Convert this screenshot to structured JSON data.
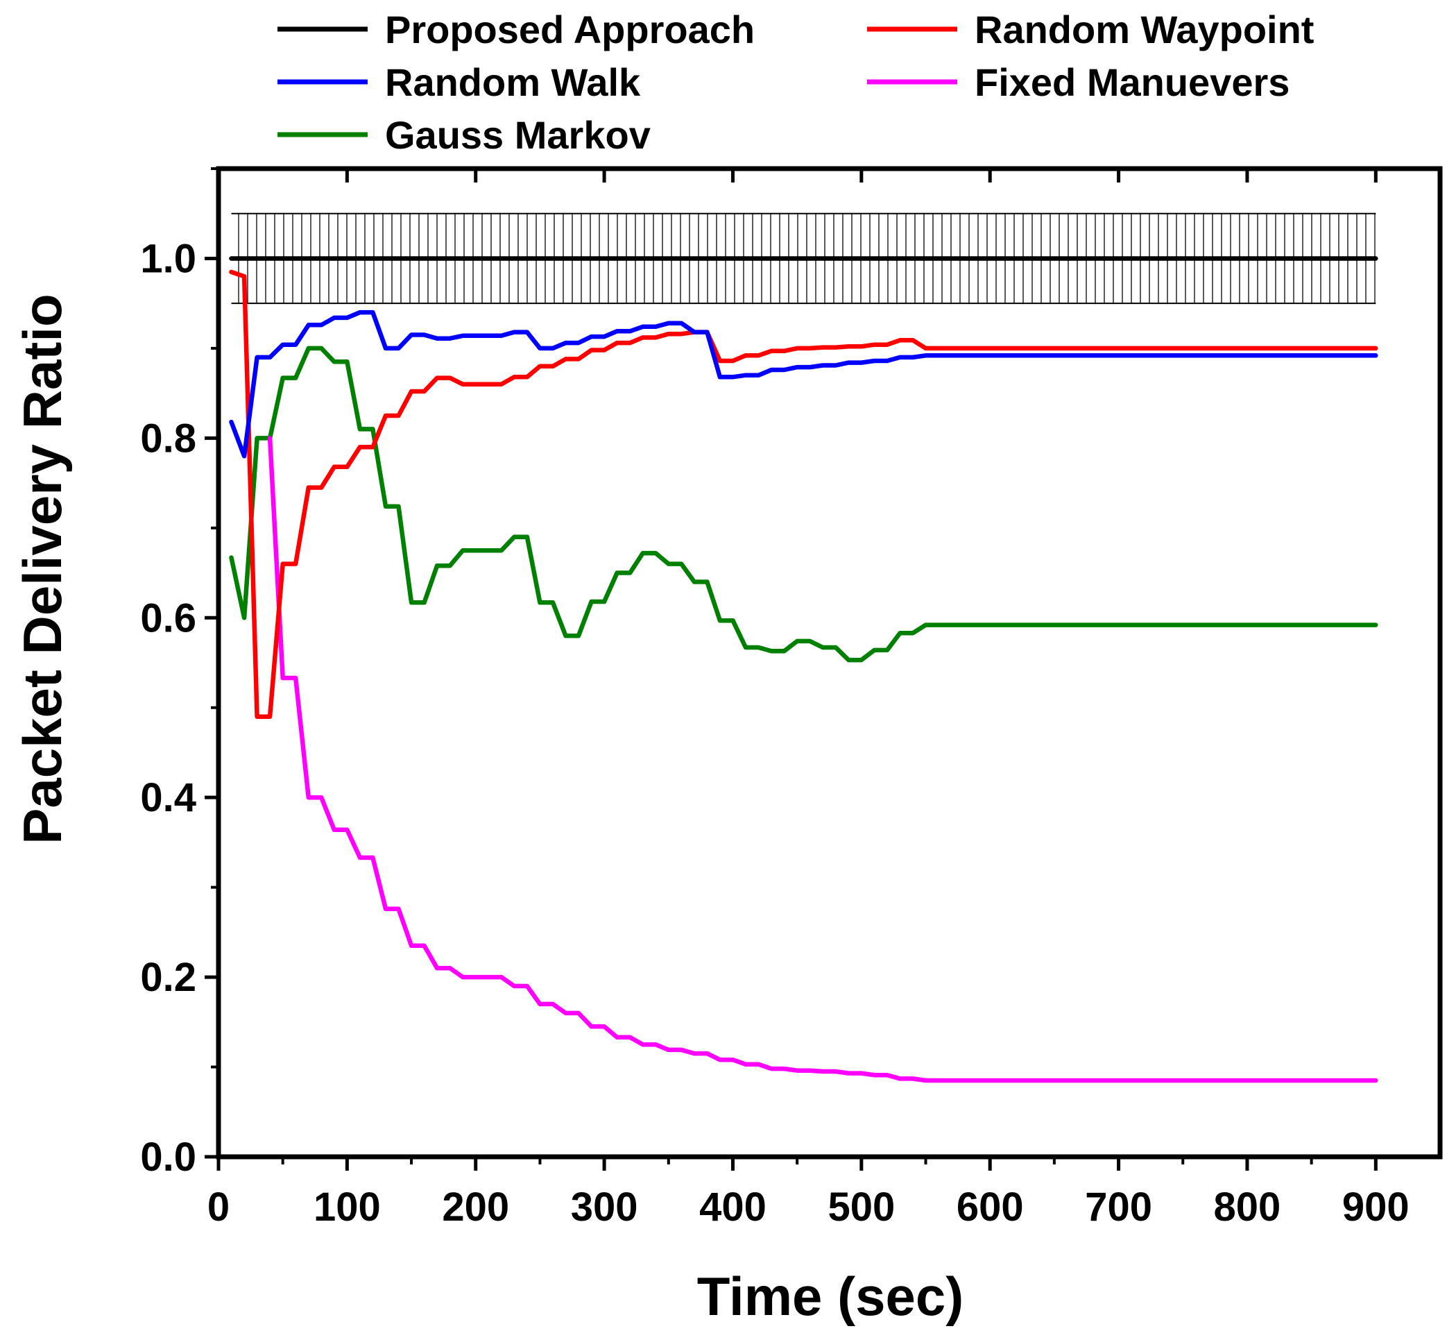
{
  "chart_data": {
    "type": "line",
    "title": "",
    "xlabel": "Time (sec)",
    "ylabel": "Packet Delivery Ratio",
    "xlim": [
      0,
      950
    ],
    "ylim": [
      0,
      1.1
    ],
    "xticks": [
      0,
      100,
      200,
      300,
      400,
      500,
      600,
      700,
      800,
      900
    ],
    "xtick_labels": [
      "0",
      "100",
      "200",
      "300",
      "400",
      "500",
      "600",
      "700",
      "800",
      "900"
    ],
    "yticks": [
      0.0,
      0.2,
      0.4,
      0.6,
      0.8,
      1.0
    ],
    "ytick_labels": [
      "0.0",
      "0.2",
      "0.4",
      "0.6",
      "0.8",
      "1.0"
    ],
    "grid": false,
    "legend_position": "top, outside plot area",
    "error_band": {
      "series": "Proposed Approach",
      "lower": 0.95,
      "upper": 1.05,
      "style": "vertical hatch"
    },
    "series": [
      {
        "name": "Proposed Approach",
        "color": "#000000",
        "x": [
          10,
          900
        ],
        "y": [
          1.0,
          1.0
        ]
      },
      {
        "name": "Random Waypoint",
        "color": "#ff0000",
        "x": [
          10,
          20,
          30,
          40,
          50,
          60,
          70,
          80,
          90,
          100,
          110,
          120,
          130,
          140,
          150,
          160,
          170,
          180,
          190,
          200,
          210,
          220,
          230,
          240,
          250,
          260,
          270,
          280,
          290,
          300,
          310,
          320,
          330,
          340,
          350,
          360,
          370,
          380,
          390,
          400,
          410,
          420,
          430,
          440,
          450,
          460,
          470,
          480,
          490,
          500,
          510,
          520,
          530,
          540,
          550,
          900
        ],
        "y": [
          0.985,
          0.98,
          0.49,
          0.49,
          0.66,
          0.66,
          0.745,
          0.745,
          0.768,
          0.768,
          0.79,
          0.79,
          0.825,
          0.825,
          0.852,
          0.852,
          0.867,
          0.867,
          0.86,
          0.86,
          0.86,
          0.86,
          0.868,
          0.868,
          0.88,
          0.88,
          0.888,
          0.888,
          0.898,
          0.898,
          0.906,
          0.906,
          0.912,
          0.912,
          0.916,
          0.916,
          0.918,
          0.918,
          0.886,
          0.886,
          0.892,
          0.892,
          0.897,
          0.897,
          0.9,
          0.9,
          0.901,
          0.901,
          0.902,
          0.902,
          0.904,
          0.904,
          0.909,
          0.909,
          0.9,
          0.9
        ]
      },
      {
        "name": "Random Walk",
        "color": "#0000ff",
        "x": [
          10,
          20,
          30,
          40,
          50,
          60,
          70,
          80,
          90,
          100,
          110,
          120,
          130,
          140,
          150,
          160,
          170,
          180,
          190,
          200,
          210,
          220,
          230,
          240,
          250,
          260,
          270,
          280,
          290,
          300,
          310,
          320,
          330,
          340,
          350,
          360,
          370,
          380,
          390,
          400,
          410,
          420,
          430,
          440,
          450,
          460,
          470,
          480,
          490,
          500,
          510,
          520,
          530,
          540,
          550,
          900
        ],
        "y": [
          0.818,
          0.78,
          0.89,
          0.89,
          0.904,
          0.904,
          0.926,
          0.926,
          0.934,
          0.934,
          0.94,
          0.94,
          0.9,
          0.9,
          0.915,
          0.915,
          0.911,
          0.911,
          0.914,
          0.914,
          0.914,
          0.914,
          0.918,
          0.918,
          0.9,
          0.9,
          0.906,
          0.906,
          0.913,
          0.913,
          0.919,
          0.919,
          0.924,
          0.924,
          0.928,
          0.928,
          0.918,
          0.918,
          0.868,
          0.868,
          0.87,
          0.87,
          0.876,
          0.876,
          0.879,
          0.879,
          0.881,
          0.881,
          0.884,
          0.884,
          0.886,
          0.886,
          0.89,
          0.89,
          0.892,
          0.892
        ]
      },
      {
        "name": "Fixed Manuevers",
        "color": "#ff00ff",
        "x": [
          40,
          50,
          60,
          70,
          80,
          90,
          100,
          110,
          120,
          130,
          140,
          150,
          160,
          170,
          180,
          190,
          200,
          210,
          220,
          230,
          240,
          250,
          260,
          270,
          280,
          290,
          300,
          310,
          320,
          330,
          340,
          350,
          360,
          370,
          380,
          390,
          400,
          410,
          420,
          430,
          440,
          450,
          460,
          470,
          480,
          490,
          500,
          510,
          520,
          530,
          540,
          550,
          900
        ],
        "y": [
          0.8,
          0.533,
          0.533,
          0.4,
          0.4,
          0.364,
          0.364,
          0.333,
          0.333,
          0.276,
          0.276,
          0.235,
          0.235,
          0.21,
          0.21,
          0.2,
          0.2,
          0.2,
          0.2,
          0.19,
          0.19,
          0.17,
          0.17,
          0.16,
          0.16,
          0.145,
          0.145,
          0.133,
          0.133,
          0.125,
          0.125,
          0.119,
          0.119,
          0.115,
          0.115,
          0.108,
          0.108,
          0.103,
          0.103,
          0.098,
          0.098,
          0.096,
          0.096,
          0.095,
          0.095,
          0.093,
          0.093,
          0.091,
          0.091,
          0.087,
          0.087,
          0.085,
          0.085
        ]
      },
      {
        "name": "Gauss Markov",
        "color": "#008000",
        "x": [
          10,
          20,
          30,
          40,
          50,
          60,
          70,
          80,
          90,
          100,
          110,
          120,
          130,
          140,
          150,
          160,
          170,
          180,
          190,
          200,
          210,
          220,
          230,
          240,
          250,
          260,
          270,
          280,
          290,
          300,
          310,
          320,
          330,
          340,
          350,
          360,
          370,
          380,
          390,
          400,
          410,
          420,
          430,
          440,
          450,
          460,
          470,
          480,
          490,
          500,
          510,
          520,
          530,
          540,
          550,
          900
        ],
        "y": [
          0.667,
          0.6,
          0.8,
          0.8,
          0.867,
          0.867,
          0.9,
          0.9,
          0.885,
          0.885,
          0.81,
          0.81,
          0.724,
          0.724,
          0.617,
          0.617,
          0.658,
          0.658,
          0.675,
          0.675,
          0.675,
          0.675,
          0.69,
          0.69,
          0.617,
          0.617,
          0.58,
          0.58,
          0.618,
          0.618,
          0.65,
          0.65,
          0.672,
          0.672,
          0.66,
          0.66,
          0.64,
          0.64,
          0.597,
          0.597,
          0.567,
          0.567,
          0.563,
          0.563,
          0.574,
          0.574,
          0.567,
          0.567,
          0.553,
          0.553,
          0.564,
          0.564,
          0.583,
          0.583,
          0.592,
          0.592
        ]
      }
    ]
  }
}
